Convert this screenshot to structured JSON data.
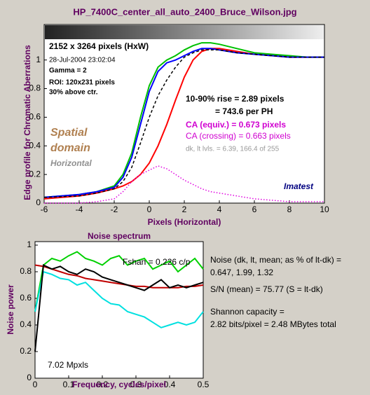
{
  "chart_data": [
    {
      "type": "line",
      "title": "HP_7400C_center_all_auto_2400_Bruce_Wilson.jpg",
      "x_label": "Pixels (Horizontal)",
      "y_label": "Edge profile for Chromatic Aberrations",
      "x": [
        -6,
        -4,
        -3,
        -2,
        -1.5,
        -1,
        -0.5,
        0,
        0.5,
        1,
        1.5,
        2,
        2.5,
        3,
        3.5,
        4,
        5,
        6,
        7,
        8,
        9,
        10
      ],
      "series": [
        {
          "color": "#ff0000",
          "style": "solid",
          "values": [
            0.03,
            0.05,
            0.07,
            0.1,
            0.12,
            0.15,
            0.2,
            0.28,
            0.4,
            0.55,
            0.72,
            0.88,
            1.0,
            1.06,
            1.08,
            1.08,
            1.06,
            1.04,
            1.03,
            1.02,
            1.02,
            1.02
          ]
        },
        {
          "color": "#00c000",
          "style": "solid",
          "values": [
            0.04,
            0.06,
            0.08,
            0.12,
            0.2,
            0.35,
            0.6,
            0.82,
            0.95,
            1.0,
            1.03,
            1.07,
            1.1,
            1.12,
            1.12,
            1.11,
            1.08,
            1.05,
            1.04,
            1.03,
            1.02,
            1.02
          ]
        },
        {
          "color": "#0000ff",
          "style": "solid",
          "values": [
            0.04,
            0.06,
            0.08,
            0.11,
            0.18,
            0.32,
            0.55,
            0.78,
            0.92,
            0.98,
            1.0,
            1.03,
            1.06,
            1.08,
            1.08,
            1.07,
            1.05,
            1.04,
            1.03,
            1.02,
            1.02,
            1.02
          ]
        },
        {
          "color": "#000000",
          "style": "dashed",
          "values": [
            0.04,
            0.05,
            0.07,
            0.1,
            0.15,
            0.25,
            0.42,
            0.6,
            0.75,
            0.86,
            0.95,
            1.02,
            1.05,
            1.07,
            1.07,
            1.07,
            1.05,
            1.04,
            1.03,
            1.02,
            1.02,
            1.02
          ]
        },
        {
          "color": "#e000e0",
          "style": "dotted",
          "values": [
            0,
            0,
            0.01,
            0.03,
            0.08,
            0.15,
            0.2,
            0.23,
            0.26,
            0.24,
            0.2,
            0.16,
            0.13,
            0.1,
            0.08,
            0.07,
            0.05,
            0.03,
            0.02,
            0.01,
            0.01,
            0.01
          ]
        }
      ],
      "xlim": [
        -6,
        10
      ],
      "xticks": [
        -6,
        -4,
        -2,
        0,
        2,
        4,
        6,
        8,
        10
      ],
      "ylim": [
        0,
        1.15
      ],
      "yticks": [
        0,
        0.2,
        0.4,
        0.6,
        0.8,
        1
      ],
      "annotations": [
        "2152 x 3264 pixels (HxW)",
        "28-Jul-2004 23:02:04",
        "Gamma = 2",
        "ROI: 120x231 pixels",
        "30% above ctr.",
        "10-90% rise = 2.89 pixels",
        "= 743.6 per PH",
        "CA (equiv.) = 0.673 pixels",
        "CA (crossing) = 0.663 pixels",
        "dk, lt lvls. = 6.39, 166.4 of 255",
        "Spatial",
        "domain",
        "Horizontal",
        "Imatest"
      ]
    },
    {
      "type": "line",
      "title": "Noise spectrum",
      "x_label": "Frequency, cycles/pixel",
      "y_label": "Noise power",
      "x": [
        0,
        0.025,
        0.05,
        0.075,
        0.1,
        0.125,
        0.15,
        0.175,
        0.2,
        0.225,
        0.25,
        0.275,
        0.3,
        0.325,
        0.35,
        0.375,
        0.4,
        0.425,
        0.45,
        0.475,
        0.5
      ],
      "series": [
        {
          "color": "#00d000",
          "style": "solid",
          "values": [
            0.5,
            0.85,
            0.9,
            0.88,
            0.92,
            0.95,
            0.9,
            0.88,
            0.85,
            0.9,
            0.92,
            0.85,
            0.88,
            0.9,
            0.82,
            0.85,
            0.88,
            0.8,
            0.85,
            0.9,
            0.82
          ]
        },
        {
          "color": "#00e0e0",
          "style": "solid",
          "values": [
            0.5,
            0.8,
            0.78,
            0.75,
            0.74,
            0.7,
            0.72,
            0.66,
            0.6,
            0.56,
            0.55,
            0.5,
            0.48,
            0.46,
            0.42,
            0.38,
            0.4,
            0.42,
            0.4,
            0.42,
            0.5
          ]
        },
        {
          "color": "#c00000",
          "style": "solid",
          "values": [
            0.85,
            0.84,
            0.82,
            0.8,
            0.78,
            0.77,
            0.75,
            0.74,
            0.73,
            0.72,
            0.71,
            0.7,
            0.69,
            0.69,
            0.68,
            0.68,
            0.68,
            0.68,
            0.69,
            0.69,
            0.7
          ]
        },
        {
          "color": "#000000",
          "style": "solid",
          "values": [
            0.2,
            0.85,
            0.82,
            0.84,
            0.8,
            0.78,
            0.82,
            0.8,
            0.76,
            0.74,
            0.72,
            0.7,
            0.68,
            0.66,
            0.7,
            0.74,
            0.68,
            0.7,
            0.68,
            0.7,
            0.72
          ]
        }
      ],
      "xlim": [
        0,
        0.5
      ],
      "xticks": [
        0,
        0.1,
        0.2,
        0.3,
        0.4,
        0.5
      ],
      "ylim": [
        0,
        1
      ],
      "yticks": [
        0,
        0.2,
        0.4,
        0.6,
        0.8,
        1
      ],
      "annotations": [
        "Fshan = 0.226 c/p",
        "7.02 Mpxls",
        "Noise (dk, lt, mean; as % of lt-dk) =",
        "0.647,   1.99,   1.32",
        "S/N (mean) = 75.77  (S = lt-dk)",
        "Shannon capacity =",
        "2.82 bits/pixel = 2.48 MBytes total"
      ]
    }
  ]
}
